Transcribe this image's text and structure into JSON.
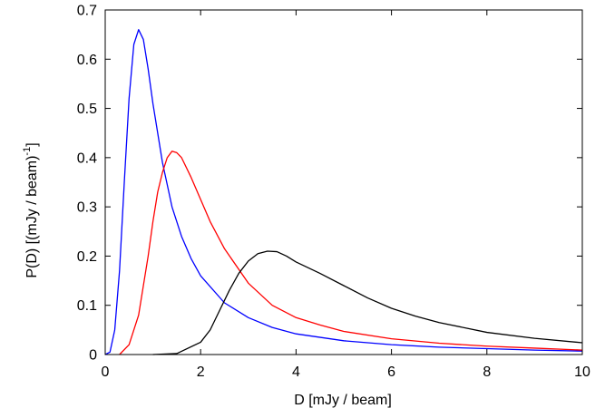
{
  "chart_data": {
    "type": "line",
    "xlabel": "D [mJy / beam]",
    "ylabel_main": "P(D) [(mJy / beam)",
    "ylabel_sup": "-1",
    "ylabel_end": "]",
    "xlim": [
      0,
      10
    ],
    "ylim": [
      0,
      0.7
    ],
    "x_ticks": [
      {
        "value": 0,
        "label": "0"
      },
      {
        "value": 2,
        "label": "2"
      },
      {
        "value": 4,
        "label": "4"
      },
      {
        "value": 6,
        "label": "6"
      },
      {
        "value": 8,
        "label": "8"
      },
      {
        "value": 10,
        "label": "10"
      }
    ],
    "y_ticks": [
      {
        "value": 0,
        "label": "0"
      },
      {
        "value": 0.1,
        "label": "0.1"
      },
      {
        "value": 0.2,
        "label": "0.2"
      },
      {
        "value": 0.3,
        "label": "0.3"
      },
      {
        "value": 0.4,
        "label": "0.4"
      },
      {
        "value": 0.5,
        "label": "0.5"
      },
      {
        "value": 0.6,
        "label": "0.6"
      },
      {
        "value": 0.7,
        "label": "0.7"
      }
    ],
    "grid": false,
    "legend": "none",
    "series": [
      {
        "color": "#0000ff",
        "x": [
          0,
          0.1,
          0.2,
          0.3,
          0.4,
          0.5,
          0.6,
          0.7,
          0.8,
          0.9,
          1.0,
          1.2,
          1.4,
          1.6,
          1.8,
          2.0,
          2.5,
          3.0,
          3.5,
          4.0,
          5.0,
          6.0,
          7.0,
          8.0,
          9.0,
          10.0
        ],
        "y": [
          0.0,
          0.005,
          0.05,
          0.17,
          0.35,
          0.52,
          0.63,
          0.66,
          0.64,
          0.58,
          0.51,
          0.39,
          0.3,
          0.24,
          0.195,
          0.16,
          0.105,
          0.075,
          0.055,
          0.042,
          0.028,
          0.02,
          0.015,
          0.012,
          0.009,
          0.007
        ]
      },
      {
        "color": "#ff0000",
        "x": [
          0.3,
          0.5,
          0.7,
          0.9,
          1.0,
          1.1,
          1.2,
          1.3,
          1.4,
          1.5,
          1.6,
          1.8,
          2.0,
          2.2,
          2.5,
          3.0,
          3.5,
          4.0,
          4.5,
          5.0,
          6.0,
          7.0,
          8.0,
          9.0,
          10.0
        ],
        "y": [
          0.0,
          0.02,
          0.08,
          0.2,
          0.27,
          0.33,
          0.37,
          0.4,
          0.413,
          0.41,
          0.4,
          0.36,
          0.315,
          0.27,
          0.215,
          0.145,
          0.1,
          0.075,
          0.06,
          0.047,
          0.032,
          0.023,
          0.017,
          0.013,
          0.009
        ]
      },
      {
        "color": "#000000",
        "x": [
          1.0,
          1.5,
          2.0,
          2.2,
          2.4,
          2.6,
          2.8,
          3.0,
          3.2,
          3.4,
          3.6,
          3.8,
          4.0,
          4.5,
          5.0,
          5.5,
          6.0,
          6.5,
          7.0,
          8.0,
          9.0,
          10.0
        ],
        "y": [
          0.0,
          0.002,
          0.025,
          0.05,
          0.09,
          0.13,
          0.165,
          0.19,
          0.205,
          0.21,
          0.209,
          0.2,
          0.188,
          0.165,
          0.14,
          0.115,
          0.094,
          0.078,
          0.065,
          0.045,
          0.033,
          0.024
        ]
      }
    ]
  }
}
